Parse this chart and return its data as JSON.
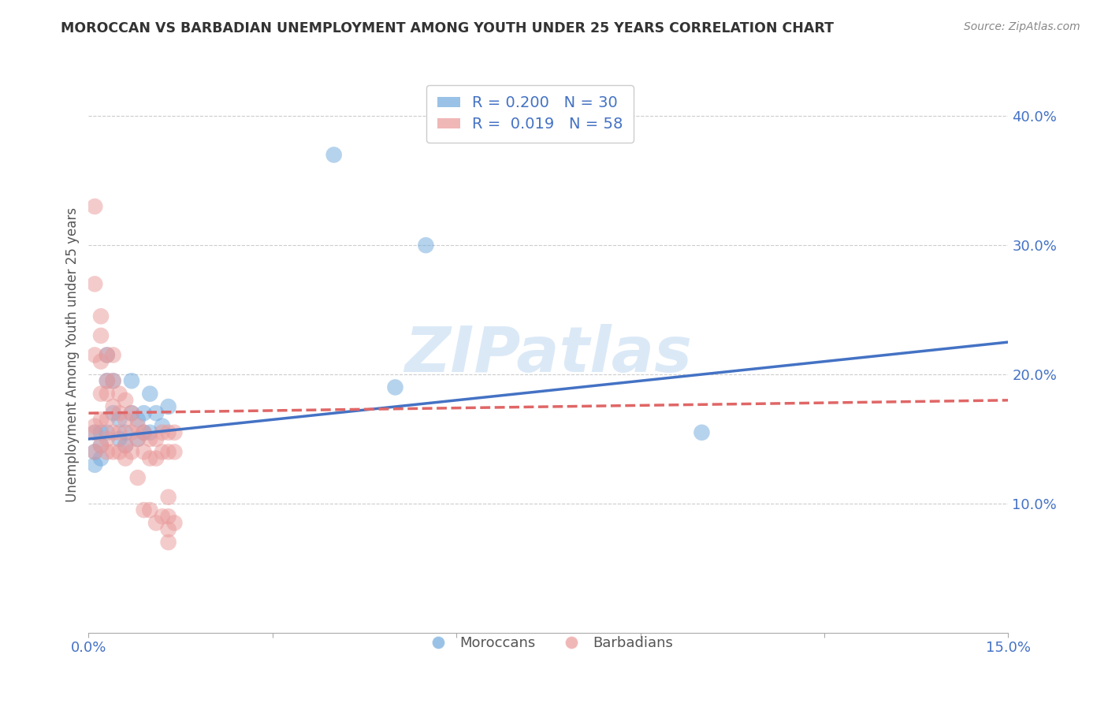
{
  "title": "MOROCCAN VS BARBADIAN UNEMPLOYMENT AMONG YOUTH UNDER 25 YEARS CORRELATION CHART",
  "source": "Source: ZipAtlas.com",
  "ylabel": "Unemployment Among Youth under 25 years",
  "xlim": [
    0.0,
    0.15
  ],
  "ylim": [
    0.0,
    0.43
  ],
  "yticks_right": [
    0.1,
    0.2,
    0.3,
    0.4
  ],
  "ytick_labels_right": [
    "10.0%",
    "20.0%",
    "30.0%",
    "40.0%"
  ],
  "moroccan_color": "#6fa8dc",
  "barbadian_color": "#ea9999",
  "moroccan_line_color": "#4472c4",
  "barbadian_line_color": "#e06666",
  "moroccan_R": 0.2,
  "moroccan_N": 30,
  "barbadian_R": 0.019,
  "barbadian_N": 58,
  "watermark": "ZIPatlas",
  "moroccan_x": [
    0.001,
    0.001,
    0.002,
    0.002,
    0.002,
    0.003,
    0.003,
    0.003,
    0.004,
    0.004,
    0.005,
    0.005,
    0.006,
    0.006,
    0.007,
    0.007,
    0.008,
    0.008,
    0.009,
    0.009,
    0.01,
    0.01,
    0.011,
    0.012,
    0.013,
    0.04,
    0.05,
    0.055,
    0.1,
    0.001
  ],
  "moroccan_y": [
    0.155,
    0.14,
    0.155,
    0.145,
    0.135,
    0.215,
    0.195,
    0.155,
    0.195,
    0.17,
    0.165,
    0.15,
    0.155,
    0.145,
    0.195,
    0.17,
    0.165,
    0.15,
    0.17,
    0.155,
    0.185,
    0.155,
    0.17,
    0.16,
    0.175,
    0.37,
    0.19,
    0.3,
    0.155,
    0.13
  ],
  "barbadian_x": [
    0.001,
    0.001,
    0.001,
    0.001,
    0.001,
    0.002,
    0.002,
    0.002,
    0.002,
    0.002,
    0.002,
    0.003,
    0.003,
    0.003,
    0.003,
    0.003,
    0.003,
    0.004,
    0.004,
    0.004,
    0.004,
    0.004,
    0.005,
    0.005,
    0.005,
    0.005,
    0.006,
    0.006,
    0.006,
    0.006,
    0.007,
    0.007,
    0.007,
    0.008,
    0.008,
    0.008,
    0.009,
    0.009,
    0.009,
    0.01,
    0.01,
    0.01,
    0.011,
    0.011,
    0.011,
    0.012,
    0.012,
    0.012,
    0.013,
    0.013,
    0.013,
    0.013,
    0.013,
    0.013,
    0.014,
    0.014,
    0.014,
    0.001
  ],
  "barbadian_y": [
    0.33,
    0.27,
    0.215,
    0.155,
    0.14,
    0.245,
    0.23,
    0.21,
    0.185,
    0.165,
    0.145,
    0.215,
    0.195,
    0.185,
    0.165,
    0.15,
    0.14,
    0.215,
    0.195,
    0.175,
    0.155,
    0.14,
    0.185,
    0.17,
    0.155,
    0.14,
    0.18,
    0.165,
    0.145,
    0.135,
    0.17,
    0.155,
    0.14,
    0.16,
    0.15,
    0.12,
    0.155,
    0.14,
    0.095,
    0.15,
    0.135,
    0.095,
    0.15,
    0.135,
    0.085,
    0.155,
    0.14,
    0.09,
    0.155,
    0.14,
    0.105,
    0.09,
    0.08,
    0.07,
    0.155,
    0.14,
    0.085,
    0.16
  ],
  "background_color": "#ffffff",
  "grid_color": "#cccccc",
  "title_color": "#333333",
  "axis_color": "#4472c4"
}
